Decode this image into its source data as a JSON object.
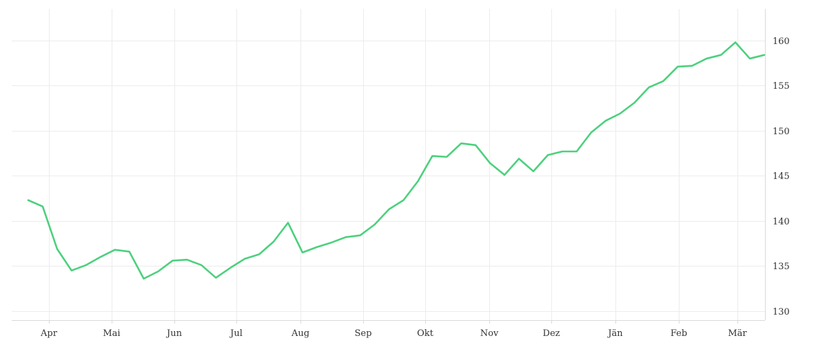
{
  "chart_data": {
    "type": "line",
    "title": "",
    "xlabel": "",
    "ylabel": "",
    "x_axis": {
      "ticks": [
        "Apr",
        "Mai",
        "Jun",
        "Jul",
        "Aug",
        "Sep",
        "Okt",
        "Nov",
        "Dez",
        "Jän",
        "Feb",
        "Mär"
      ]
    },
    "y_axis": {
      "position": "right",
      "ticks": [
        130,
        135,
        140,
        145,
        150,
        155,
        160
      ]
    },
    "ylim": [
      129,
      163.5
    ],
    "grid": true,
    "legend": "none",
    "series": [
      {
        "color": "#4cd07d",
        "values": [
          142.3,
          141.6,
          136.9,
          134.5,
          135.1,
          136.0,
          136.8,
          136.6,
          133.6,
          134.4,
          135.6,
          135.7,
          135.1,
          133.7,
          134.8,
          135.8,
          136.3,
          137.7,
          139.8,
          136.5,
          137.1,
          137.6,
          138.2,
          138.4,
          139.6,
          141.3,
          142.3,
          144.4,
          147.2,
          147.1,
          148.6,
          148.4,
          146.4,
          145.1,
          146.9,
          145.5,
          147.3,
          147.7,
          147.7,
          149.8,
          151.1,
          151.9,
          153.1,
          154.8,
          155.5,
          157.1,
          157.2,
          158.0,
          158.4,
          159.8,
          158.0,
          158.4
        ]
      }
    ]
  }
}
